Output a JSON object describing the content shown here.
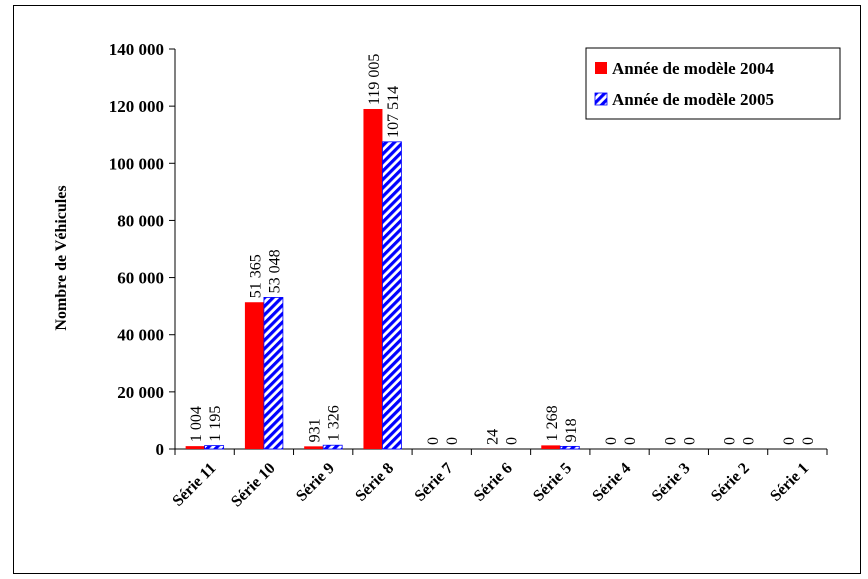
{
  "chart_data": {
    "type": "bar",
    "title": "",
    "xlabel": "",
    "ylabel": "Nombre de Véhicules",
    "ylim": [
      0,
      140000
    ],
    "yticks": [
      0,
      20000,
      40000,
      60000,
      80000,
      100000,
      120000,
      140000
    ],
    "ytick_labels": [
      "0",
      "20 000",
      "40 000",
      "60 000",
      "80 000",
      "100 000",
      "120 000",
      "140 000"
    ],
    "categories": [
      "Série 11",
      "Série 10",
      "Série 9",
      "Série 8",
      "Série 7",
      "Série 6",
      "Série 5",
      "Série 4",
      "Série 3",
      "Série 2",
      "Série 1"
    ],
    "series": [
      {
        "name": "Année de modèle 2004",
        "color": "#ff0000",
        "pattern": "solid",
        "values": [
          1004,
          51365,
          931,
          119005,
          0,
          24,
          1268,
          0,
          0,
          0,
          0
        ],
        "labels": [
          "1 004",
          "51 365",
          "931",
          "119 005",
          "0",
          "24",
          "1 268",
          "0",
          "0",
          "0",
          "0"
        ]
      },
      {
        "name": "Année de modèle 2005",
        "color": "#0000ff",
        "pattern": "diagonal-stripes",
        "values": [
          1195,
          53048,
          1326,
          107514,
          0,
          0,
          918,
          0,
          0,
          0,
          0
        ],
        "labels": [
          "1 195",
          "53 048",
          "1 326",
          "107 514",
          "0",
          "0",
          "918",
          "0",
          "0",
          "0",
          "0"
        ]
      }
    ],
    "legend_position": "top-right",
    "grid": false
  }
}
